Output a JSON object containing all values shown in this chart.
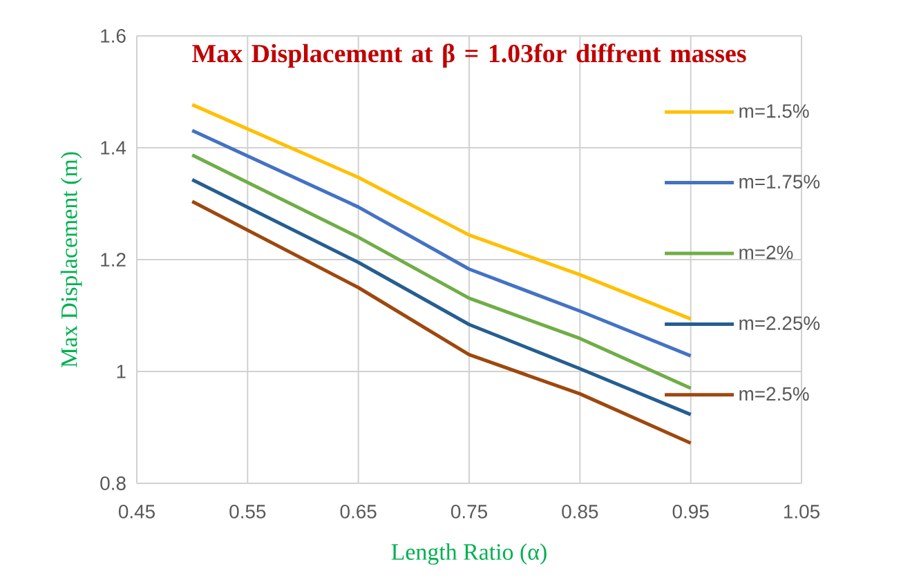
{
  "chart_data": {
    "type": "line",
    "title": "Max Displacement at β = 1.03for diffrent masses",
    "xlabel": "Length Ratio (α)",
    "ylabel": "Max Displacement (m)",
    "x": [
      0.5,
      0.65,
      0.75,
      0.85,
      0.95
    ],
    "series": [
      {
        "name": "m=1.5%",
        "color": "#FFC000",
        "values": [
          1.477,
          1.347,
          1.244,
          1.173,
          1.094
        ]
      },
      {
        "name": "m=1.75%",
        "color": "#4472C4",
        "values": [
          1.431,
          1.294,
          1.183,
          1.108,
          1.028
        ]
      },
      {
        "name": "m=2%",
        "color": "#70AD47",
        "values": [
          1.387,
          1.24,
          1.131,
          1.059,
          0.97
        ]
      },
      {
        "name": "m=2.25%",
        "color": "#255E91",
        "values": [
          1.343,
          1.195,
          1.084,
          1.005,
          0.923
        ]
      },
      {
        "name": "m=2.5%",
        "color": "#9E480E",
        "values": [
          1.304,
          1.15,
          1.03,
          0.96,
          0.872
        ]
      }
    ],
    "xlim": [
      0.45,
      1.05
    ],
    "xticks": [
      0.45,
      0.55,
      0.65,
      0.75,
      0.85,
      0.95,
      1.05
    ],
    "ylim": [
      0.8,
      1.6
    ],
    "yticks": [
      0.8,
      1,
      1.2,
      1.4,
      1.6
    ],
    "grid": true,
    "legend": "right",
    "marker": "none",
    "line_style": "solid"
  }
}
